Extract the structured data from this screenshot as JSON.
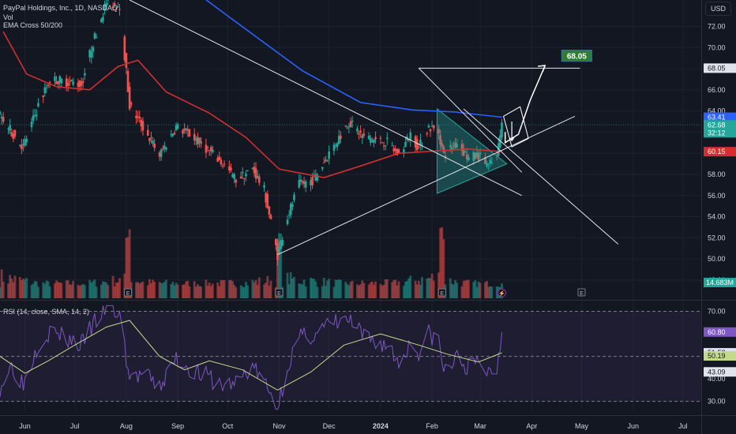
{
  "legend": {
    "symbol": "PayPal Holdings, Inc., 1D, NASDAQ",
    "volume": "Vol",
    "ema": "EMA Cross 50/200",
    "rsi": "RSI (14, close, SMA, 14, 2)"
  },
  "currency": "USD",
  "colors": {
    "background": "#131722",
    "up": "#26a69a",
    "down": "#ef5350",
    "ema50": "#d32f2f",
    "ema200": "#2962ff",
    "rsi": "#7e57c2",
    "rsi_sma": "#c5d98a",
    "trendline": "#e0e3eb",
    "triangle_fill": "#26a69a"
  },
  "chart_data": [
    {
      "type": "candlestick",
      "title": "PayPal Holdings, Inc., 1D, NASDAQ",
      "price_axis": {
        "ticks": [
          48.0,
          50.0,
          52.0,
          54.0,
          56.0,
          58.0,
          60.0,
          62.0,
          64.0,
          66.0,
          68.0,
          70.0,
          72.0
        ],
        "ylim": [
          46.5,
          74.5
        ]
      },
      "time_axis": {
        "labels": [
          "Jun",
          "Jul",
          "Aug",
          "Sep",
          "Oct",
          "Nov",
          "Dec",
          "2024",
          "Feb",
          "Mar",
          "Apr",
          "May",
          "Jun",
          "Jul"
        ],
        "range": [
          "2023-05-17",
          "2024-07-12"
        ]
      },
      "price_knots": [
        [
          "2023-05-17",
          63.5
        ],
        [
          "2023-05-24",
          62.0
        ],
        [
          "2023-05-31",
          60.6
        ],
        [
          "2023-06-09",
          64.5
        ],
        [
          "2023-06-16",
          67.0
        ],
        [
          "2023-06-26",
          66.8
        ],
        [
          "2023-07-05",
          66.5
        ],
        [
          "2023-07-12",
          70.5
        ],
        [
          "2023-07-20",
          74.3
        ],
        [
          "2023-07-28",
          74.0
        ],
        [
          "2023-08-03",
          64.5
        ],
        [
          "2023-08-11",
          62.5
        ],
        [
          "2023-08-21",
          59.8
        ],
        [
          "2023-08-31",
          62.5
        ],
        [
          "2023-09-08",
          61.8
        ],
        [
          "2023-09-18",
          60.5
        ],
        [
          "2023-09-28",
          59.0
        ],
        [
          "2023-10-06",
          57.5
        ],
        [
          "2023-10-16",
          58.5
        ],
        [
          "2023-10-23",
          56.5
        ],
        [
          "2023-10-31",
          50.4
        ],
        [
          "2023-11-06",
          54.0
        ],
        [
          "2023-11-13",
          57.0
        ],
        [
          "2023-11-22",
          57.5
        ],
        [
          "2023-12-01",
          60.0
        ],
        [
          "2023-12-13",
          63.0
        ],
        [
          "2023-12-22",
          61.5
        ],
        [
          "2024-01-05",
          61.0
        ],
        [
          "2024-01-12",
          59.8
        ],
        [
          "2024-01-19",
          61.8
        ],
        [
          "2024-01-24",
          60.5
        ],
        [
          "2024-01-30",
          62.5
        ],
        [
          "2024-02-05",
          62.0
        ],
        [
          "2024-02-08",
          59.8
        ],
        [
          "2024-02-16",
          61.0
        ],
        [
          "2024-02-23",
          59.5
        ],
        [
          "2024-02-29",
          59.8
        ],
        [
          "2024-03-06",
          58.8
        ],
        [
          "2024-03-11",
          59.6
        ],
        [
          "2024-03-14",
          62.68
        ]
      ],
      "last_close": 62.68,
      "levels": {
        "target": 68.05,
        "ema200": 63.41,
        "ema50": 60.15,
        "countdown": "32:12"
      },
      "ema50_points": [
        [
          "2023-05-19",
          71.5
        ],
        [
          "2023-06-02",
          67.5
        ],
        [
          "2023-06-20",
          66.3
        ],
        [
          "2023-07-10",
          66.0
        ],
        [
          "2023-07-27",
          68.2
        ],
        [
          "2023-08-08",
          68.8
        ],
        [
          "2023-08-25",
          65.8
        ],
        [
          "2023-09-20",
          63.8
        ],
        [
          "2023-10-12",
          61.5
        ],
        [
          "2023-11-01",
          58.5
        ],
        [
          "2023-11-28",
          57.7
        ],
        [
          "2023-12-20",
          58.8
        ],
        [
          "2024-01-12",
          60.0
        ],
        [
          "2024-02-02",
          60.2
        ],
        [
          "2024-02-23",
          60.4
        ],
        [
          "2024-03-14",
          60.15
        ]
      ],
      "ema200_points": [
        [
          "2023-07-01",
          80.5
        ],
        [
          "2023-08-15",
          78.5
        ],
        [
          "2023-10-01",
          73.0
        ],
        [
          "2023-11-15",
          67.8
        ],
        [
          "2023-12-20",
          64.8
        ],
        [
          "2024-01-20",
          64.1
        ],
        [
          "2024-02-15",
          63.9
        ],
        [
          "2024-03-14",
          63.41
        ]
      ],
      "trendlines": [
        [
          [
            "2023-08-03",
            74.5
          ],
          [
            "2024-03-26",
            56.0
          ]
        ],
        [
          [
            "2023-10-31",
            50.4
          ],
          [
            "2024-04-27",
            63.5
          ]
        ],
        [
          [
            "2024-01-24",
            68.05
          ],
          [
            "2024-04-30",
            68.05
          ]
        ],
        [
          [
            "2024-01-24",
            68.05
          ],
          [
            "2024-03-26",
            58.2
          ]
        ],
        [
          [
            "2024-02-20",
            64.2
          ],
          [
            "2024-05-23",
            51.4
          ]
        ]
      ],
      "triangle": [
        [
          "2024-02-04",
          64.2
        ],
        [
          "2024-02-04",
          56.2
        ],
        [
          "2024-03-17",
          59.0
        ]
      ],
      "projection": [
        [
          "2024-03-16",
          62.0
        ],
        [
          "2024-03-16",
          61.0
        ],
        [
          "2024-03-24",
          61.8
        ],
        [
          "2024-03-31",
          65.0
        ],
        [
          "2024-04-09",
          68.3
        ]
      ],
      "projection_box": [
        [
          "2024-03-15",
          63.5
        ],
        [
          "2024-03-25",
          64.4
        ],
        [
          "2024-03-30",
          61.4
        ],
        [
          "2024-03-20",
          60.6
        ]
      ]
    },
    {
      "type": "bar",
      "title": "Vol",
      "last_value_label": "14.683M",
      "volume_profile": [
        [
          "2023-05-17",
          0.4
        ],
        [
          "2023-05-18",
          0.95
        ],
        [
          "2023-06-10",
          0.35
        ],
        [
          "2023-07-10",
          0.38
        ],
        [
          "2023-08-02",
          0.75
        ],
        [
          "2023-08-03",
          0.95
        ],
        [
          "2023-08-10",
          0.45
        ],
        [
          "2023-09-05",
          0.35
        ],
        [
          "2023-10-10",
          0.4
        ],
        [
          "2023-10-31",
          0.7
        ],
        [
          "2023-11-01",
          0.85
        ],
        [
          "2023-12-10",
          0.35
        ],
        [
          "2024-01-10",
          0.4
        ],
        [
          "2024-02-07",
          1.0
        ],
        [
          "2024-02-08",
          0.7
        ],
        [
          "2024-02-20",
          0.4
        ],
        [
          "2024-03-14",
          0.3
        ]
      ],
      "earnings_markers": [
        "2023-05-08",
        "2023-08-02",
        "2023-11-01",
        "2024-02-07",
        "2024-05-01"
      ]
    },
    {
      "type": "line",
      "title": "RSI (14, close, SMA, 14, 2)",
      "ylim": [
        26,
        73
      ],
      "ticks": [
        30.0,
        40.0,
        50.0,
        60.0,
        70.0
      ],
      "band": [
        30,
        70
      ],
      "midline": 50,
      "rsi_points": [
        [
          "2023-05-17",
          36.5
        ],
        [
          "2023-05-24",
          46.0
        ],
        [
          "2023-05-31",
          38.0
        ],
        [
          "2023-06-09",
          56.0
        ],
        [
          "2023-06-16",
          61.0
        ],
        [
          "2023-06-26",
          58.0
        ],
        [
          "2023-07-05",
          55.0
        ],
        [
          "2023-07-12",
          64.0
        ],
        [
          "2023-07-20",
          72.0
        ],
        [
          "2023-07-28",
          68.0
        ],
        [
          "2023-08-03",
          40.0
        ],
        [
          "2023-08-11",
          42.0
        ],
        [
          "2023-08-21",
          36.0
        ],
        [
          "2023-08-31",
          49.0
        ],
        [
          "2023-09-08",
          45.0
        ],
        [
          "2023-09-18",
          41.0
        ],
        [
          "2023-09-28",
          37.0
        ],
        [
          "2023-10-06",
          38.0
        ],
        [
          "2023-10-16",
          46.0
        ],
        [
          "2023-10-23",
          38.0
        ],
        [
          "2023-10-31",
          27.0
        ],
        [
          "2023-11-06",
          46.0
        ],
        [
          "2023-11-13",
          58.0
        ],
        [
          "2023-11-22",
          60.0
        ],
        [
          "2023-12-01",
          64.0
        ],
        [
          "2023-12-13",
          66.0
        ],
        [
          "2023-12-22",
          58.0
        ],
        [
          "2024-01-05",
          55.0
        ],
        [
          "2024-01-12",
          47.0
        ],
        [
          "2024-01-19",
          56.0
        ],
        [
          "2024-01-24",
          52.0
        ],
        [
          "2024-01-30",
          60.0
        ],
        [
          "2024-02-05",
          57.0
        ],
        [
          "2024-02-08",
          43.0
        ],
        [
          "2024-02-16",
          49.0
        ],
        [
          "2024-02-23",
          45.0
        ],
        [
          "2024-02-29",
          47.0
        ],
        [
          "2024-03-06",
          43.0
        ],
        [
          "2024-03-11",
          45.0
        ],
        [
          "2024-03-14",
          60.8
        ]
      ],
      "sma_points": [
        [
          "2023-05-17",
          50.0
        ],
        [
          "2023-06-01",
          42.5
        ],
        [
          "2023-06-15",
          48.0
        ],
        [
          "2023-07-01",
          55.0
        ],
        [
          "2023-07-20",
          63.0
        ],
        [
          "2023-08-03",
          66.0
        ],
        [
          "2023-08-21",
          50.0
        ],
        [
          "2023-09-05",
          44.0
        ],
        [
          "2023-09-20",
          48.0
        ],
        [
          "2023-10-10",
          44.0
        ],
        [
          "2023-10-31",
          35.0
        ],
        [
          "2023-11-20",
          43.0
        ],
        [
          "2023-12-10",
          55.0
        ],
        [
          "2024-01-01",
          60.0
        ],
        [
          "2024-01-24",
          55.0
        ],
        [
          "2024-02-10",
          51.0
        ],
        [
          "2024-02-29",
          47.5
        ],
        [
          "2024-03-14",
          51.58
        ]
      ],
      "levels": {
        "rsi": 60.8,
        "sma": 51.58,
        "mid": 50.19,
        "low": 43.09
      }
    }
  ]
}
